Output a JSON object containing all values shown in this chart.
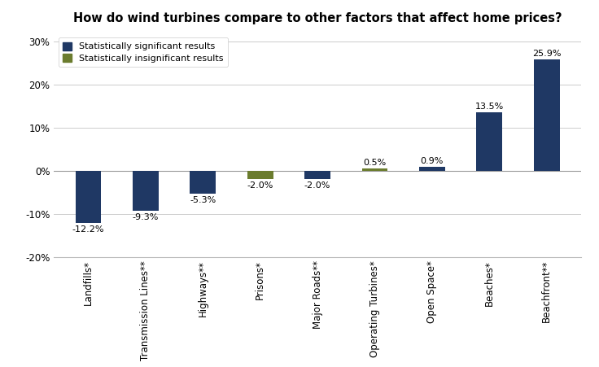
{
  "title": "How do wind turbines compare to other factors that affect home prices?",
  "categories": [
    "Landfills*",
    "Transmission Lines**",
    "Highways**",
    "Prisons*",
    "Major Roads**",
    "Operating Turbines*",
    "Open Space*",
    "Beaches*",
    "Beachfront**"
  ],
  "values": [
    -12.2,
    -9.3,
    -5.3,
    -2.0,
    -2.0,
    0.5,
    0.9,
    13.5,
    25.9
  ],
  "colors": [
    "#1f3864",
    "#1f3864",
    "#1f3864",
    "#6b7c2e",
    "#1f3864",
    "#6b7c2e",
    "#1f3864",
    "#1f3864",
    "#1f3864"
  ],
  "ylim": [
    -20,
    32
  ],
  "yticks": [
    -20,
    -10,
    0,
    10,
    20,
    30
  ],
  "ytick_labels": [
    "-20%",
    "-10%",
    "0%",
    "10%",
    "20%",
    "30%"
  ],
  "color_significant": "#1f3864",
  "color_insignificant": "#6b7c2e",
  "legend_significant": "Statistically significant results",
  "legend_insignificant": "Statistically insignificant results",
  "value_labels": [
    "-12.2%",
    "-9.3%",
    "-5.3%",
    "-2.0%",
    "-2.0%",
    "0.5%",
    "0.9%",
    "13.5%",
    "25.9%"
  ],
  "bar_width": 0.45,
  "label_fontsize": 8,
  "tick_fontsize": 8.5,
  "title_fontsize": 10.5
}
